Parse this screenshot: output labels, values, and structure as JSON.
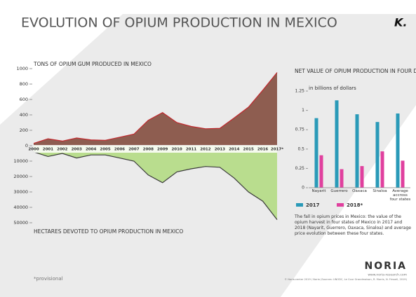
{
  "texts": {
    "title": "EVOLUTION OF OPIUM PRODUCTION IN MEXICO",
    "logo": "K.",
    "caption": "The fall in opium prices in Mexico: the value of the opium harvest in four states of Mexico in 2017 and 2018 (Nayarit, Guerrero, Oaxaca, Sinaloa) and average price evolution between these four states.",
    "footnote": "*provisional",
    "brand": "NORIA",
    "website": "www.noria-research.com",
    "credits": "© Noria.center 2019 / Noria (Sources: UNODC, Le Cour Grandmaison, R. Morris, N. Frissell, 2019)"
  },
  "chart_data": [
    {
      "type": "area",
      "title": "TONS OF OPIUM GUM PRODUCED IN MEXICO",
      "categories": [
        "2000",
        "2001",
        "2002",
        "2003",
        "2004",
        "2005",
        "2006",
        "2007",
        "2008",
        "2009",
        "2010",
        "2011",
        "2012",
        "2013",
        "2014",
        "2015",
        "2016",
        "2017*"
      ],
      "values": [
        30,
        90,
        60,
        100,
        75,
        70,
        110,
        150,
        330,
        430,
        300,
        250,
        220,
        225,
        360,
        500,
        720,
        950
      ],
      "color": "#8e5d50",
      "line_color": "#c0282d",
      "ylim": [
        0,
        1000
      ],
      "yticks": [
        0,
        200,
        400,
        600,
        800,
        1000
      ]
    },
    {
      "type": "area",
      "title": "HECTARES DEVOTED TO OPIUM PRODUCTION IN MEXICO",
      "values": [
        4000,
        7000,
        5000,
        8000,
        6000,
        6000,
        8000,
        10000,
        19000,
        24000,
        17000,
        15000,
        13500,
        14000,
        21000,
        30000,
        36000,
        48000
      ],
      "color": "#b9dd8e",
      "line_color": "#3a3a3a",
      "ylim": [
        50000,
        0
      ],
      "yticks": [
        10000,
        20000,
        30000,
        40000,
        50000
      ]
    },
    {
      "type": "bar",
      "title": "NET VALUE OF OPIUM PRODUCTION IN FOUR DIFFERENT STATES",
      "subtitle": "in billions of dollars",
      "categories": [
        "Nayarit",
        "Guerrero",
        "Oaxaca",
        "Sinaloa",
        "Average accross four states"
      ],
      "series": [
        {
          "name": "2017",
          "color": "#2a9ab8",
          "values": [
            0.9,
            1.13,
            0.95,
            0.85,
            0.96
          ]
        },
        {
          "name": "2018*",
          "color": "#e0409e",
          "values": [
            0.42,
            0.24,
            0.28,
            0.47,
            0.35
          ]
        }
      ],
      "ylim": [
        0,
        1.25
      ],
      "yticks": [
        0,
        0.25,
        0.5,
        0.75,
        1,
        1.25
      ]
    }
  ]
}
